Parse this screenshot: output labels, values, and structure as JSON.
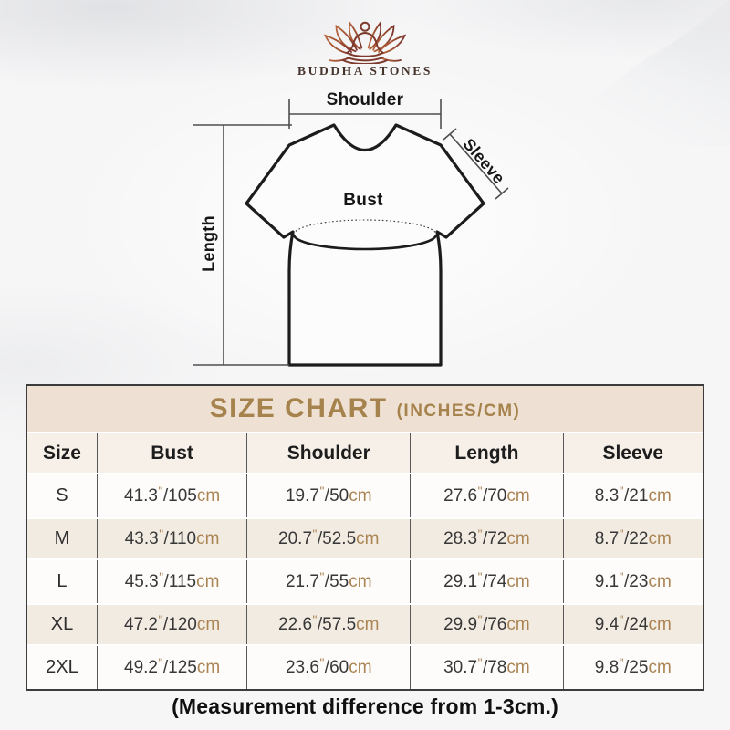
{
  "logo": {
    "brand": "BUDDHA STONES"
  },
  "diagram": {
    "labels": {
      "shoulder": "Shoulder",
      "sleeve": "Sleeve",
      "length": "Length",
      "bust": "Bust"
    }
  },
  "chart_data": {
    "type": "table",
    "title": "SIZE CHART",
    "title_suffix": "(INCHES/CM)",
    "unit_inch_mark": "\"",
    "unit_cm": "cm",
    "columns": [
      "Size",
      "Bust",
      "Shoulder",
      "Length",
      "Sleeve"
    ],
    "rows": [
      {
        "size": "S",
        "values": [
          {
            "in": "41.3",
            "cm": "105"
          },
          {
            "in": "19.7",
            "cm": "50"
          },
          {
            "in": "27.6",
            "cm": "70"
          },
          {
            "in": "8.3",
            "cm": "21"
          }
        ]
      },
      {
        "size": "M",
        "values": [
          {
            "in": "43.3",
            "cm": "110"
          },
          {
            "in": "20.7",
            "cm": "52.5"
          },
          {
            "in": "28.3",
            "cm": "72"
          },
          {
            "in": "8.7",
            "cm": "22"
          }
        ]
      },
      {
        "size": "L",
        "values": [
          {
            "in": "45.3",
            "cm": "115"
          },
          {
            "in": "21.7",
            "cm": "55"
          },
          {
            "in": "29.1",
            "cm": "74"
          },
          {
            "in": "9.1",
            "cm": "23"
          }
        ]
      },
      {
        "size": "XL",
        "values": [
          {
            "in": "47.2",
            "cm": "120"
          },
          {
            "in": "22.6",
            "cm": "57.5"
          },
          {
            "in": "29.9",
            "cm": "76"
          },
          {
            "in": "9.4",
            "cm": "24"
          }
        ]
      },
      {
        "size": "2XL",
        "values": [
          {
            "in": "49.2",
            "cm": "125"
          },
          {
            "in": "23.6",
            "cm": "60"
          },
          {
            "in": "30.7",
            "cm": "78"
          },
          {
            "in": "9.8",
            "cm": "25"
          }
        ]
      }
    ]
  },
  "note": "(Measurement difference from 1-3cm.)",
  "colors": {
    "accent_gold": "#a6824d",
    "unit_tan": "#ab8454",
    "band_bg": "#eee1d3",
    "header_row_bg": "#f6f0e9",
    "row_alt_bg": "#f2ebe2",
    "logo_maroon": "#7c392c",
    "logo_orange": "#b5663f"
  }
}
